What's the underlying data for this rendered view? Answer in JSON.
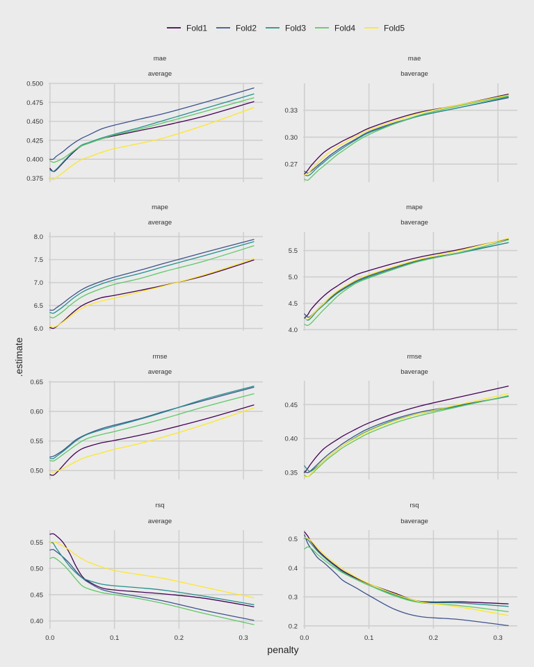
{
  "chart_data": {
    "type": "line",
    "xlabel": "penalty",
    "ylabel": ".estimate",
    "legend_position": "top",
    "grid": true,
    "colors": {
      "Fold1": "#440154",
      "Fold2": "#3b528b",
      "Fold3": "#21908c",
      "Fold4": "#5dc863",
      "Fold5": "#fde725"
    },
    "legend": [
      "Fold1",
      "Fold2",
      "Fold3",
      "Fold4",
      "Fold5"
    ],
    "x": [
      0.0,
      0.005,
      0.01,
      0.02,
      0.03,
      0.04,
      0.05,
      0.06,
      0.08,
      0.1,
      0.14,
      0.18,
      0.24,
      0.316
    ],
    "xlim": [
      -0.002,
      0.33
    ],
    "xticks": [
      0.0,
      0.1,
      0.2,
      0.3
    ],
    "xtick_labels": [
      "0.0",
      "0.1",
      "0.2",
      "0.3"
    ],
    "panels": [
      {
        "metric": "mae",
        "subtitle": "average",
        "ylim": [
          0.37,
          0.5
        ],
        "yticks": [
          0.375,
          0.4,
          0.425,
          0.45,
          0.475,
          0.5
        ],
        "ytick_labels": [
          "0.375",
          "0.400",
          "0.425",
          "0.450",
          "0.475",
          "0.500"
        ],
        "series": [
          {
            "name": "Fold1",
            "values": [
              0.388,
              0.384,
              0.386,
              0.395,
              0.404,
              0.412,
              0.418,
              0.421,
              0.427,
              0.431,
              0.438,
              0.445,
              0.457,
              0.476
            ]
          },
          {
            "name": "Fold2",
            "values": [
              0.4,
              0.4,
              0.404,
              0.41,
              0.417,
              0.423,
              0.428,
              0.432,
              0.44,
              0.445,
              0.453,
              0.461,
              0.475,
              0.494
            ]
          },
          {
            "name": "Fold3",
            "values": [
              0.386,
              0.384,
              0.387,
              0.396,
              0.405,
              0.413,
              0.419,
              0.422,
              0.428,
              0.433,
              0.442,
              0.452,
              0.467,
              0.486
            ]
          },
          {
            "name": "Fold4",
            "values": [
              0.398,
              0.396,
              0.397,
              0.401,
              0.407,
              0.413,
              0.418,
              0.421,
              0.427,
              0.432,
              0.44,
              0.449,
              0.463,
              0.481
            ]
          },
          {
            "name": "Fold5",
            "values": [
              0.375,
              0.373,
              0.376,
              0.382,
              0.389,
              0.395,
              0.4,
              0.403,
              0.409,
              0.414,
              0.421,
              0.429,
              0.445,
              0.468
            ]
          }
        ]
      },
      {
        "metric": "mae",
        "subtitle": "baverage",
        "ylim": [
          0.25,
          0.36
        ],
        "yticks": [
          0.27,
          0.3,
          0.33
        ],
        "ytick_labels": [
          "0.27",
          "0.30",
          "0.33"
        ],
        "series": [
          {
            "name": "Fold1",
            "values": [
              0.259,
              0.263,
              0.268,
              0.276,
              0.283,
              0.288,
              0.292,
              0.296,
              0.303,
              0.31,
              0.32,
              0.328,
              0.336,
              0.348
            ]
          },
          {
            "name": "Fold2",
            "values": [
              0.262,
              0.26,
              0.262,
              0.268,
              0.274,
              0.28,
              0.285,
              0.29,
              0.298,
              0.306,
              0.316,
              0.324,
              0.333,
              0.344
            ]
          },
          {
            "name": "Fold3",
            "values": [
              0.258,
              0.257,
              0.259,
              0.266,
              0.272,
              0.278,
              0.283,
              0.288,
              0.297,
              0.305,
              0.315,
              0.324,
              0.333,
              0.345
            ]
          },
          {
            "name": "Fold4",
            "values": [
              0.253,
              0.252,
              0.255,
              0.262,
              0.268,
              0.274,
              0.28,
              0.285,
              0.295,
              0.303,
              0.315,
              0.325,
              0.335,
              0.346
            ]
          },
          {
            "name": "Fold5",
            "values": [
              0.258,
              0.259,
              0.263,
              0.271,
              0.278,
              0.284,
              0.289,
              0.293,
              0.301,
              0.308,
              0.318,
              0.327,
              0.336,
              0.347
            ]
          }
        ]
      },
      {
        "metric": "mape",
        "subtitle": "average",
        "ylim": [
          5.95,
          8.1
        ],
        "yticks": [
          6.0,
          6.5,
          7.0,
          7.5,
          8.0
        ],
        "ytick_labels": [
          "6.0",
          "6.5",
          "7.0",
          "7.5",
          "8.0"
        ],
        "series": [
          {
            "name": "Fold1",
            "values": [
              6.02,
              6.0,
              6.04,
              6.15,
              6.28,
              6.4,
              6.5,
              6.57,
              6.67,
              6.72,
              6.83,
              6.95,
              7.15,
              7.49
            ]
          },
          {
            "name": "Fold2",
            "values": [
              6.4,
              6.4,
              6.45,
              6.55,
              6.66,
              6.76,
              6.85,
              6.92,
              7.03,
              7.12,
              7.27,
              7.43,
              7.66,
              7.94
            ]
          },
          {
            "name": "Fold3",
            "values": [
              6.35,
              6.33,
              6.37,
              6.47,
              6.59,
              6.7,
              6.79,
              6.86,
              6.97,
              7.06,
              7.2,
              7.36,
              7.59,
              7.89
            ]
          },
          {
            "name": "Fold4",
            "values": [
              6.25,
              6.23,
              6.27,
              6.37,
              6.49,
              6.6,
              6.69,
              6.76,
              6.87,
              6.96,
              7.09,
              7.25,
              7.47,
              7.8
            ]
          },
          {
            "name": "Fold5",
            "values": [
              6.05,
              6.02,
              6.05,
              6.14,
              6.25,
              6.35,
              6.44,
              6.51,
              6.6,
              6.66,
              6.8,
              6.94,
              7.17,
              7.52
            ]
          }
        ]
      },
      {
        "metric": "mape",
        "subtitle": "baverage",
        "ylim": [
          3.98,
          5.85
        ],
        "yticks": [
          4.0,
          4.5,
          5.0,
          5.5
        ],
        "ytick_labels": [
          "4.0",
          "4.5",
          "5.0",
          "5.5"
        ],
        "series": [
          {
            "name": "Fold1",
            "values": [
              4.22,
              4.28,
              4.38,
              4.52,
              4.64,
              4.74,
              4.82,
              4.9,
              5.04,
              5.12,
              5.26,
              5.38,
              5.52,
              5.72
            ]
          },
          {
            "name": "Fold2",
            "values": [
              4.3,
              4.24,
              4.26,
              4.38,
              4.5,
              4.6,
              4.7,
              4.78,
              4.92,
              5.02,
              5.18,
              5.32,
              5.46,
              5.65
            ]
          },
          {
            "name": "Fold3",
            "values": [
              4.22,
              4.18,
              4.22,
              4.36,
              4.47,
              4.58,
              4.68,
              4.76,
              4.9,
              5.0,
              5.16,
              5.31,
              5.45,
              5.65
            ]
          },
          {
            "name": "Fold4",
            "values": [
              4.1,
              4.08,
              4.12,
              4.25,
              4.38,
              4.5,
              4.62,
              4.72,
              4.88,
              4.98,
              5.15,
              5.3,
              5.46,
              5.7
            ]
          },
          {
            "name": "Fold5",
            "values": [
              4.2,
              4.2,
              4.25,
              4.38,
              4.5,
              4.62,
              4.72,
              4.8,
              4.94,
              5.04,
              5.2,
              5.34,
              5.5,
              5.73
            ]
          }
        ]
      },
      {
        "metric": "rmse",
        "subtitle": "average",
        "ylim": [
          0.485,
          0.652
        ],
        "yticks": [
          0.5,
          0.55,
          0.6,
          0.65
        ],
        "ytick_labels": [
          "0.50",
          "0.55",
          "0.60",
          "0.65"
        ],
        "series": [
          {
            "name": "Fold1",
            "values": [
              0.493,
              0.492,
              0.496,
              0.508,
              0.52,
              0.53,
              0.537,
              0.541,
              0.547,
              0.551,
              0.56,
              0.57,
              0.587,
              0.611
            ]
          },
          {
            "name": "Fold2",
            "values": [
              0.523,
              0.524,
              0.527,
              0.534,
              0.543,
              0.552,
              0.558,
              0.563,
              0.571,
              0.577,
              0.588,
              0.601,
              0.619,
              0.641
            ]
          },
          {
            "name": "Fold3",
            "values": [
              0.521,
              0.52,
              0.524,
              0.532,
              0.541,
              0.55,
              0.557,
              0.562,
              0.569,
              0.575,
              0.587,
              0.6,
              0.621,
              0.643
            ]
          },
          {
            "name": "Fold4",
            "values": [
              0.517,
              0.516,
              0.519,
              0.527,
              0.535,
              0.543,
              0.55,
              0.555,
              0.561,
              0.566,
              0.577,
              0.589,
              0.608,
              0.63
            ]
          },
          {
            "name": "Fold5",
            "values": [
              0.499,
              0.497,
              0.499,
              0.503,
              0.509,
              0.515,
              0.52,
              0.524,
              0.53,
              0.536,
              0.546,
              0.558,
              0.578,
              0.606
            ]
          }
        ]
      },
      {
        "metric": "rmse",
        "subtitle": "baverage",
        "ylim": [
          0.34,
          0.485
        ],
        "yticks": [
          0.35,
          0.4,
          0.45
        ],
        "ytick_labels": [
          "0.35",
          "0.40",
          "0.45"
        ],
        "series": [
          {
            "name": "Fold1",
            "values": [
              0.35,
              0.356,
              0.363,
              0.375,
              0.385,
              0.392,
              0.398,
              0.404,
              0.414,
              0.423,
              0.437,
              0.448,
              0.461,
              0.477
            ]
          },
          {
            "name": "Fold2",
            "values": [
              0.352,
              0.35,
              0.353,
              0.362,
              0.371,
              0.379,
              0.386,
              0.393,
              0.405,
              0.415,
              0.429,
              0.439,
              0.449,
              0.462
            ]
          },
          {
            "name": "Fold3",
            "values": [
              0.36,
              0.354,
              0.352,
              0.359,
              0.368,
              0.376,
              0.383,
              0.39,
              0.402,
              0.412,
              0.427,
              0.437,
              0.448,
              0.462
            ]
          },
          {
            "name": "Fold4",
            "values": [
              0.346,
              0.344,
              0.347,
              0.356,
              0.365,
              0.373,
              0.38,
              0.387,
              0.398,
              0.408,
              0.423,
              0.434,
              0.447,
              0.463
            ]
          },
          {
            "name": "Fold5",
            "values": [
              0.344,
              0.344,
              0.348,
              0.358,
              0.368,
              0.376,
              0.383,
              0.39,
              0.401,
              0.411,
              0.426,
              0.437,
              0.45,
              0.466
            ]
          }
        ]
      },
      {
        "metric": "rsq",
        "subtitle": "average",
        "ylim": [
          0.385,
          0.573
        ],
        "yticks": [
          0.4,
          0.45,
          0.5,
          0.55
        ],
        "ytick_labels": [
          "0.40",
          "0.45",
          "0.50",
          "0.55"
        ],
        "series": [
          {
            "name": "Fold1",
            "values": [
              0.565,
              0.566,
              0.562,
              0.55,
              0.53,
              0.505,
              0.485,
              0.475,
              0.463,
              0.459,
              0.455,
              0.451,
              0.443,
              0.427
            ]
          },
          {
            "name": "Fold2",
            "values": [
              0.535,
              0.536,
              0.532,
              0.522,
              0.51,
              0.495,
              0.482,
              0.473,
              0.46,
              0.454,
              0.446,
              0.437,
              0.42,
              0.401
            ]
          },
          {
            "name": "Fold3",
            "values": [
              0.55,
              0.548,
              0.538,
              0.521,
              0.505,
              0.492,
              0.482,
              0.477,
              0.47,
              0.467,
              0.463,
              0.458,
              0.447,
              0.431
            ]
          },
          {
            "name": "Fold4",
            "values": [
              0.519,
              0.521,
              0.518,
              0.508,
              0.495,
              0.48,
              0.467,
              0.461,
              0.454,
              0.45,
              0.442,
              0.432,
              0.414,
              0.393
            ]
          },
          {
            "name": "Fold5",
            "values": [
              0.55,
              0.551,
              0.549,
              0.543,
              0.535,
              0.526,
              0.518,
              0.512,
              0.503,
              0.496,
              0.488,
              0.48,
              0.464,
              0.444
            ]
          }
        ]
      },
      {
        "metric": "rsq",
        "subtitle": "baverage",
        "ylim": [
          0.19,
          0.53
        ],
        "yticks": [
          0.2,
          0.3,
          0.4,
          0.5
        ],
        "ytick_labels": [
          "0.2",
          "0.3",
          "0.4",
          "0.5"
        ],
        "series": [
          {
            "name": "Fold1",
            "values": [
              0.524,
              0.51,
              0.492,
              0.463,
              0.441,
              0.422,
              0.405,
              0.389,
              0.365,
              0.345,
              0.313,
              0.284,
              0.283,
              0.276
            ]
          },
          {
            "name": "Fold2",
            "values": [
              0.514,
              0.485,
              0.467,
              0.436,
              0.418,
              0.398,
              0.377,
              0.356,
              0.331,
              0.305,
              0.257,
              0.232,
              0.222,
              0.201
            ]
          },
          {
            "name": "Fold3",
            "values": [
              0.503,
              0.497,
              0.484,
              0.458,
              0.437,
              0.418,
              0.401,
              0.385,
              0.361,
              0.34,
              0.307,
              0.282,
              0.279,
              0.267
            ]
          },
          {
            "name": "Fold4",
            "values": [
              0.465,
              0.472,
              0.468,
              0.447,
              0.428,
              0.411,
              0.396,
              0.382,
              0.36,
              0.34,
              0.303,
              0.28,
              0.27,
              0.249
            ]
          },
          {
            "name": "Fold5",
            "values": [
              0.505,
              0.502,
              0.494,
              0.469,
              0.447,
              0.428,
              0.411,
              0.395,
              0.368,
              0.346,
              0.31,
              0.283,
              0.265,
              0.236
            ]
          }
        ]
      }
    ]
  }
}
